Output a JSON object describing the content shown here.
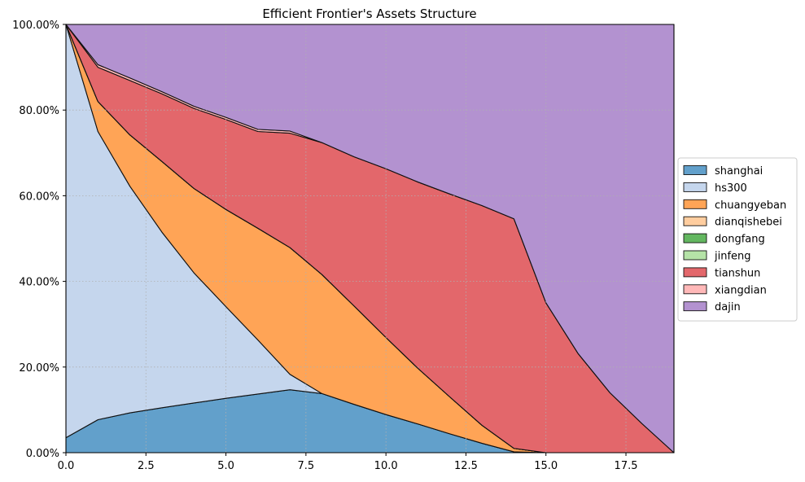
{
  "chart_data": {
    "type": "area",
    "title": "Efficient Frontier's Assets Structure",
    "xlabel": "",
    "ylabel": "",
    "stacked": true,
    "xlim": [
      0,
      19
    ],
    "ylim": [
      0,
      100
    ],
    "x_ticks": [
      0,
      2.5,
      5,
      7.5,
      10,
      12.5,
      15,
      17.5
    ],
    "x_tick_labels": [
      "0.0",
      "2.5",
      "5.0",
      "7.5",
      "10.0",
      "12.5",
      "15.0",
      "17.5"
    ],
    "y_ticks": [
      0,
      20,
      40,
      60,
      80,
      100
    ],
    "y_tick_labels": [
      "0.00%",
      "20.00%",
      "40.00%",
      "60.00%",
      "80.00%",
      "100.00%"
    ],
    "grid": true,
    "legend_position": "center-right",
    "x": [
      0,
      1,
      2,
      3,
      4,
      5,
      6,
      7,
      8,
      9,
      10,
      11,
      12,
      13,
      14,
      15,
      16,
      17,
      18,
      19
    ],
    "series": [
      {
        "name": "shanghai",
        "color": "#62a0cb",
        "values": [
          3.5,
          7.7,
          9.3,
          10.5,
          11.6,
          12.7,
          13.7,
          14.7,
          13.8,
          11.3,
          8.9,
          6.7,
          4.4,
          2.2,
          0.2,
          0,
          0,
          0,
          0,
          0
        ]
      },
      {
        "name": "hs300",
        "color": "#c5d6ed",
        "values": [
          96.5,
          67.3,
          52.9,
          41.0,
          30.4,
          21.4,
          12.6,
          3.6,
          0,
          0,
          0,
          0,
          0,
          0,
          0,
          0,
          0,
          0,
          0,
          0
        ]
      },
      {
        "name": "chuangyeban",
        "color": "#ffa456",
        "values": [
          0,
          7.0,
          12.0,
          16.5,
          19.7,
          22.7,
          26.1,
          29.6,
          27.8,
          23.0,
          18.0,
          13.0,
          8.6,
          4.2,
          0.8,
          0,
          0,
          0,
          0,
          0
        ]
      },
      {
        "name": "dianqishebei",
        "color": "#ffcd9f",
        "values": [
          0,
          0,
          0,
          0,
          0,
          0,
          0,
          0,
          0,
          0,
          0,
          0,
          0,
          0,
          0,
          0,
          0,
          0,
          0,
          0
        ]
      },
      {
        "name": "dongfang",
        "color": "#63b760",
        "values": [
          0,
          0,
          0,
          0,
          0,
          0,
          0,
          0,
          0,
          0,
          0,
          0,
          0,
          0,
          0,
          0,
          0,
          0,
          0,
          0
        ]
      },
      {
        "name": "jinfeng",
        "color": "#b5e3a7",
        "values": [
          0,
          0,
          0,
          0,
          0,
          0,
          0,
          0,
          0,
          0,
          0,
          0,
          0,
          0,
          0,
          0,
          0,
          0,
          0,
          0
        ]
      },
      {
        "name": "tianshun",
        "color": "#e3676b",
        "values": [
          0,
          8.0,
          12.7,
          15.8,
          18.7,
          21.0,
          22.6,
          26.7,
          30.8,
          34.8,
          39.4,
          43.5,
          47.4,
          51.3,
          53.6,
          35.0,
          23.2,
          14.0,
          6.8,
          0
        ]
      },
      {
        "name": "xiangdian",
        "color": "#ffb8b8",
        "values": [
          0,
          0.6,
          0.6,
          0.5,
          0.5,
          0.5,
          0.5,
          0.5,
          0,
          0,
          0,
          0,
          0,
          0,
          0,
          0,
          0,
          0,
          0,
          0
        ]
      },
      {
        "name": "dajin",
        "color": "#b392d0",
        "values": [
          0,
          9.4,
          12.5,
          15.7,
          19.1,
          21.7,
          24.5,
          24.9,
          27.6,
          30.9,
          33.7,
          36.8,
          39.6,
          42.3,
          45.4,
          65.0,
          76.8,
          86.0,
          93.2,
          100
        ]
      }
    ]
  }
}
